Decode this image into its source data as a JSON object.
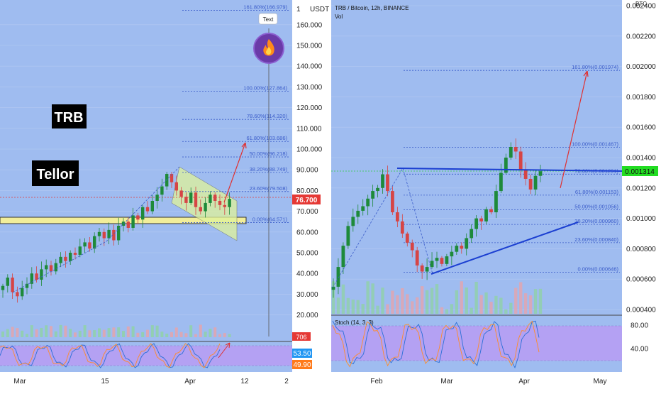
{
  "colors": {
    "background": "#9fbcf0",
    "fib_line": "#3b5cc9",
    "bull": "#1e8a3a",
    "bear": "#d64545",
    "trend_blue": "#1b3fd1",
    "arrow_red": "#e03030",
    "stoch_band": "#b79cf3",
    "price_tag": "#e53935",
    "current_btc_tag": "#22dd22",
    "zone_yellow": "#f2ee9a",
    "channel_fill": "#dff39a",
    "stoch_k_tag": "#2196f3",
    "stoch_d_tag": "#ff7a1a"
  },
  "left": {
    "labels": {
      "trb": "TRB",
      "tellor": "Tellor"
    },
    "axis_unit": "USDT",
    "axis_top": "1",
    "y_ticks": [
      "160.000",
      "150.000",
      "140.000",
      "130.000",
      "120.000",
      "110.000",
      "100.000",
      "90.000",
      "80.000",
      "70.000",
      "60.000",
      "50.000",
      "40.000",
      "30.000",
      "20.000"
    ],
    "x_ticks": [
      "Mar",
      "15",
      "Apr",
      "12",
      "2"
    ],
    "current_price": "76.700",
    "vol_tag": "706",
    "stoch_k": "53.50",
    "stoch_d": "49.90",
    "text_tooltip": "Text",
    "fire_icon": "fire-emoji",
    "fib_levels": [
      {
        "label": "161.80%(166.979)",
        "value": 166.979
      },
      {
        "label": "100.00%(127.864)",
        "value": 127.864
      },
      {
        "label": "78.60%(114.320)",
        "value": 114.32
      },
      {
        "label": "61.80%(103.686)",
        "value": 103.686
      },
      {
        "label": "50.00%(96.218)",
        "value": 96.218
      },
      {
        "label": "38.20%(88.749)",
        "value": 88.749
      },
      {
        "label": "23.60%(79.508)",
        "value": 79.508
      },
      {
        "label": "0.00%(64.571)",
        "value": 64.571
      }
    ]
  },
  "right": {
    "title": "TRB / Bitcoin, 12h, BINANCE",
    "vol_label": "Vol",
    "axis_unit": "BTC",
    "y_ticks": [
      "0.002400",
      "0.002200",
      "0.002000",
      "0.001800",
      "0.001600",
      "0.001400",
      "0.001200",
      "0.001000",
      "0.000800",
      "0.000600",
      "0.000400"
    ],
    "x_ticks": [
      "Feb",
      "Mar",
      "Apr",
      "May"
    ],
    "current_price": "0.001314",
    "stoch_label": "Stoch (14, 3, 3)",
    "stoch_ticks": [
      "80.00",
      "40.00"
    ],
    "fib_levels": [
      {
        "label": "161.80%(0.001974)",
        "value": 0.001974
      },
      {
        "label": "100.00%(0.001467)",
        "value": 0.001467
      },
      {
        "label": "78.60%(0.001291)",
        "value": 0.001291
      },
      {
        "label": "61.80%(0.001153)",
        "value": 0.001153
      },
      {
        "label": "50.00%(0.001056)",
        "value": 0.001056
      },
      {
        "label": "38.20%(0.000960)",
        "value": 0.00096
      },
      {
        "label": "23.60%(0.000840)",
        "value": 0.00084
      },
      {
        "label": "0.00%(0.000646)",
        "value": 0.000646
      }
    ]
  },
  "chart_data": [
    {
      "type": "candlestick",
      "title": "",
      "ylabel": "USDT",
      "ylim": [
        14,
        172
      ],
      "x_ticks": [
        "Mar",
        "15",
        "Apr",
        "12",
        "2"
      ],
      "series": [
        {
          "name": "",
          "values": [
            34,
            38,
            31,
            29,
            33,
            35,
            40,
            37,
            42,
            44,
            41,
            45,
            48,
            46,
            50,
            49,
            53,
            55,
            52,
            58,
            60,
            57,
            61,
            56,
            63,
            65,
            62,
            68,
            66,
            72,
            70,
            75,
            78,
            82,
            88,
            84,
            80,
            77,
            74,
            79,
            72,
            70,
            74,
            78,
            75,
            73,
            72,
            76
          ]
        }
      ]
    },
    {
      "type": "candlestick",
      "title": "",
      "ylabel": "BTC",
      "ylim": [
        0.00036,
        0.00242
      ],
      "x_ticks": [
        "Feb",
        "Mar",
        "Apr",
        "May"
      ],
      "series": [
        {
          "name": "",
          "values": [
            0.00055,
            0.00068,
            0.00082,
            0.00095,
            0.00101,
            0.00105,
            0.00108,
            0.00113,
            0.00118,
            0.0012,
            0.00129,
            0.00118,
            0.00104,
            0.00098,
            0.0009,
            0.00084,
            0.00079,
            0.00069,
            0.00065,
            0.00068,
            0.00072,
            0.00074,
            0.0007,
            0.00075,
            0.00078,
            0.00082,
            0.0008,
            0.00087,
            0.00093,
            0.001,
            0.00098,
            0.00106,
            0.00104,
            0.00118,
            0.0013,
            0.0014,
            0.00147,
            0.00144,
            0.00132,
            0.00126,
            0.00119,
            0.00128,
            0.00131
          ]
        }
      ]
    }
  ]
}
